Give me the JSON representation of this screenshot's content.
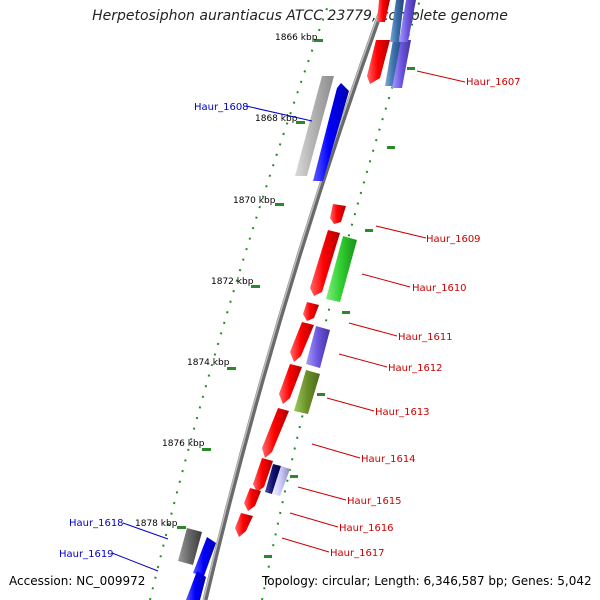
{
  "title": "Herpetosiphon aurantiacus ATCC 23779, complete genome",
  "footer": {
    "accession": "Accession: NC_009972",
    "summary": "Topology: circular; Length: 6,346,587 bp; Genes: 5,042"
  },
  "scale": {
    "unit": "kbp",
    "ticks": [
      {
        "label": "1866 kbp"
      },
      {
        "label": "1868 kbp"
      },
      {
        "label": "1870 kbp"
      },
      {
        "label": "1872 kbp"
      },
      {
        "label": "1874 kbp"
      },
      {
        "label": "1876 kbp"
      },
      {
        "label": "1878 kbp"
      }
    ]
  },
  "colors": {
    "forward_label": "#0000cc",
    "reverse_label": "#cc0000",
    "backbone": "#888888",
    "tick": "#2a8a2a"
  },
  "gene_labels": [
    {
      "text": "Haur_1607",
      "strand": "reverse"
    },
    {
      "text": "Haur_1608",
      "strand": "forward"
    },
    {
      "text": "Haur_1609",
      "strand": "reverse"
    },
    {
      "text": "Haur_1610",
      "strand": "reverse"
    },
    {
      "text": "Haur_1611",
      "strand": "reverse"
    },
    {
      "text": "Haur_1612",
      "strand": "reverse"
    },
    {
      "text": "Haur_1613",
      "strand": "reverse"
    },
    {
      "text": "Haur_1614",
      "strand": "reverse"
    },
    {
      "text": "Haur_1615",
      "strand": "reverse"
    },
    {
      "text": "Haur_1616",
      "strand": "reverse"
    },
    {
      "text": "Haur_1617",
      "strand": "reverse"
    },
    {
      "text": "Haur_1618",
      "strand": "forward"
    },
    {
      "text": "Haur_1619",
      "strand": "forward"
    }
  ]
}
